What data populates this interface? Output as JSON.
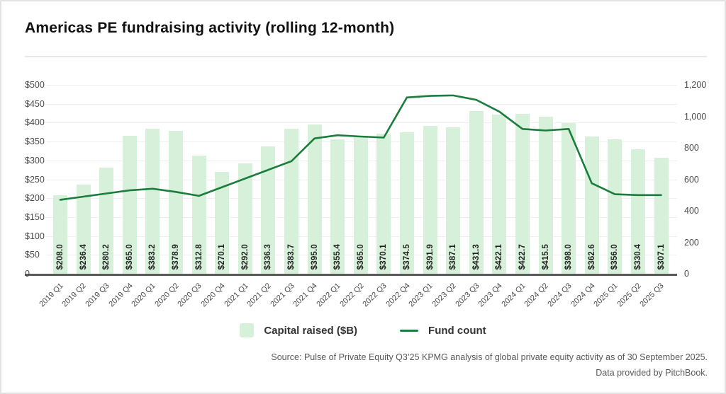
{
  "title": "Americas PE fundraising activity (rolling 12-month)",
  "legend": {
    "capital_label": "Capital raised ($B)",
    "fund_label": "Fund count"
  },
  "source": {
    "line1": "Source: Pulse of Private Equity Q3’25 KPMG analysis of global private equity activity as of 30 September 2025.",
    "line2": "Data provided by PitchBook."
  },
  "colors": {
    "bar": "#d7f0d9",
    "line": "#1a7d3c",
    "grid": "#efefef",
    "axis": "#5a5a5a"
  },
  "chart_data": {
    "type": "bar+line",
    "title": "Americas PE fundraising activity (rolling 12-month)",
    "categories": [
      "2019 Q1",
      "2019 Q2",
      "2019 Q3",
      "2019 Q4",
      "2020 Q1",
      "2020 Q2",
      "2020 Q3",
      "2020 Q4",
      "2021 Q1",
      "2021 Q2",
      "2021 Q3",
      "2021 Q4",
      "2022 Q1",
      "2022 Q2",
      "2022 Q3",
      "2022 Q4",
      "2023 Q1",
      "2023 Q2",
      "2023 Q3",
      "2023 Q4",
      "2024 Q1",
      "2024 Q2",
      "2024 Q3",
      "2024 Q4",
      "2025 Q1",
      "2025 Q2",
      "2025 Q3"
    ],
    "series": [
      {
        "name": "Capital raised ($B)",
        "type": "bar",
        "axis": "left",
        "values": [
          208.0,
          236.4,
          280.2,
          365.0,
          383.2,
          378.9,
          312.8,
          270.1,
          292.0,
          336.3,
          383.7,
          395.0,
          355.4,
          365.0,
          370.1,
          374.5,
          391.9,
          387.1,
          431.3,
          422.1,
          422.7,
          415.5,
          398.0,
          362.6,
          356.0,
          330.4,
          307.1
        ],
        "labels": [
          "$208.0",
          "$236.4",
          "$280.2",
          "$365.0",
          "$383.2",
          "$378.9",
          "$312.8",
          "$270.1",
          "$292.0",
          "$336.3",
          "$383.7",
          "$395.0",
          "$355.4",
          "$365.0",
          "$370.1",
          "$374.5",
          "$391.9",
          "$387.1",
          "$431.3",
          "$422.1",
          "$422.7",
          "$415.5",
          "$398.0",
          "$362.6",
          "$356.0",
          "$330.4",
          "$307.1"
        ]
      },
      {
        "name": "Fund count",
        "type": "line",
        "axis": "right",
        "values": [
          470,
          490,
          510,
          530,
          540,
          520,
          495,
          550,
          605,
          660,
          715,
          860,
          880,
          872,
          865,
          1120,
          1130,
          1133,
          1105,
          1030,
          920,
          910,
          920,
          575,
          505,
          500,
          500
        ]
      }
    ],
    "left_axis": {
      "range": [
        0,
        500
      ],
      "tick_step": 50,
      "tick_labels": [
        "$500",
        "$450",
        "$400",
        "$350",
        "$300",
        "$250",
        "$200",
        "$150",
        "$100",
        "$50",
        "0"
      ]
    },
    "right_axis": {
      "range": [
        0,
        1200
      ],
      "tick_step": 200,
      "tick_labels": [
        "1,200",
        "1,000",
        "800",
        "600",
        "400",
        "200",
        "0"
      ]
    },
    "grid": true,
    "legend_position": "bottom-center"
  }
}
